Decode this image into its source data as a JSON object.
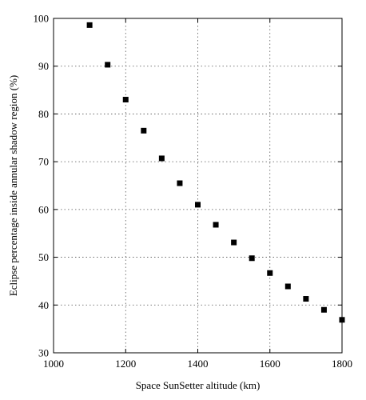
{
  "chart_data": {
    "type": "scatter",
    "xlabel": "Space SunSetter altitude (km)",
    "ylabel": "Eclipse percentage inside annular shadow region (%)",
    "xlim": [
      1000,
      1800
    ],
    "ylim": [
      30,
      100
    ],
    "xticks": [
      1000,
      1200,
      1400,
      1600,
      1800
    ],
    "yticks": [
      30,
      40,
      50,
      60,
      70,
      80,
      90,
      100
    ],
    "grid": true,
    "marker": "square",
    "series": [
      {
        "x": [
          1100,
          1150,
          1200,
          1250,
          1300,
          1350,
          1400,
          1450,
          1500,
          1550,
          1600,
          1650,
          1700,
          1750,
          1800
        ],
        "y": [
          98.6,
          90.3,
          83.0,
          76.5,
          70.7,
          65.5,
          61.0,
          56.8,
          53.1,
          49.8,
          46.7,
          43.9,
          41.3,
          39.0,
          36.9
        ]
      }
    ]
  }
}
